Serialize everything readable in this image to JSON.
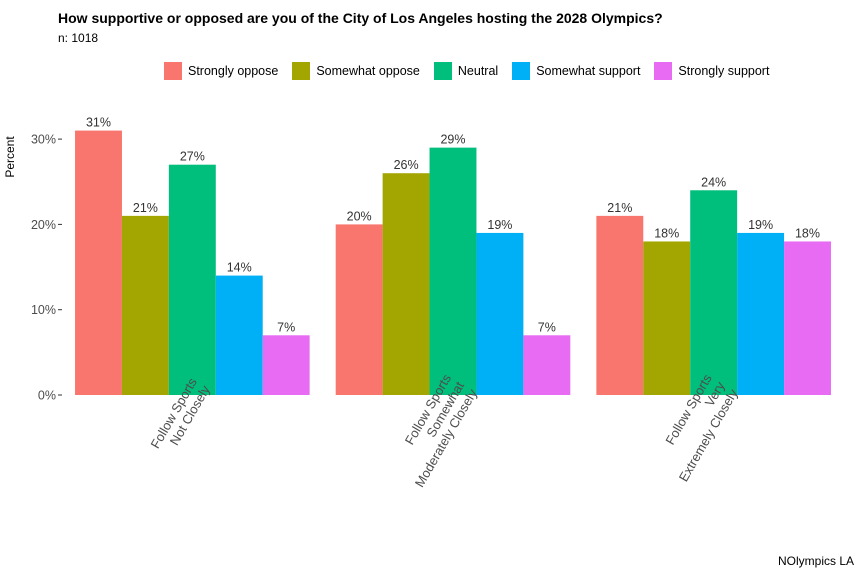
{
  "header": {
    "title": "How supportive or opposed are you of the City of Los Angeles hosting the 2028 Olympics?",
    "subtitle": "n: 1018"
  },
  "caption": "NOlympics LA",
  "colors": {
    "Strongly oppose": "#F8766D",
    "Somewhat oppose": "#A3A500",
    "Neutral": "#00BF7D",
    "Somewhat support": "#00B0F6",
    "Strongly support": "#E76BF3"
  },
  "chart_data": {
    "type": "bar",
    "title": "How supportive or opposed are you of the City of Los Angeles hosting the 2028 Olympics?",
    "ylabel": "Percent",
    "xlabel": "",
    "ylim": [
      0,
      33
    ],
    "yticks": [
      0,
      10,
      20,
      30
    ],
    "ytick_labels": [
      "0%",
      "10%",
      "20%",
      "30%"
    ],
    "legend_position": "top",
    "categories": [
      [
        "Follow Sports",
        "Not Closely"
      ],
      [
        "Follow Sports",
        "Somewhat",
        "Moderately Closely"
      ],
      [
        "Follow Sports",
        "Very",
        "Extremely Closely"
      ]
    ],
    "series": [
      {
        "name": "Strongly oppose",
        "values": [
          31,
          20,
          21
        ],
        "labels": [
          "31%",
          "20%",
          "21%"
        ]
      },
      {
        "name": "Somewhat oppose",
        "values": [
          21,
          26,
          18
        ],
        "labels": [
          "21%",
          "26%",
          "18%"
        ]
      },
      {
        "name": "Neutral",
        "values": [
          27,
          29,
          24
        ],
        "labels": [
          "27%",
          "29%",
          "24%"
        ]
      },
      {
        "name": "Somewhat support",
        "values": [
          14,
          19,
          19
        ],
        "labels": [
          "14%",
          "19%",
          "19%"
        ]
      },
      {
        "name": "Strongly support",
        "values": [
          7,
          7,
          18
        ],
        "labels": [
          "7%",
          "7%",
          "18%"
        ]
      }
    ]
  }
}
